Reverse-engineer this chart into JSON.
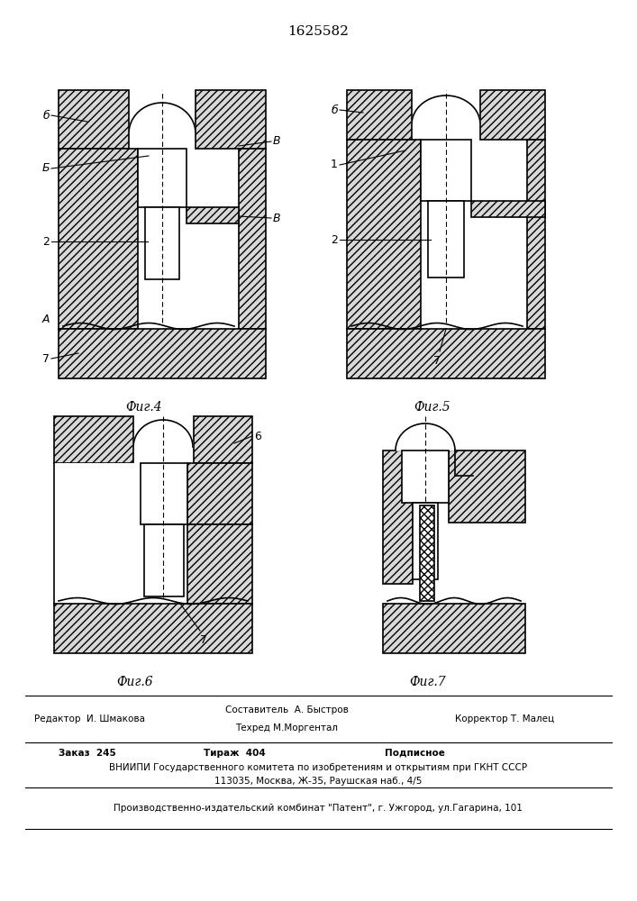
{
  "title": "1625582",
  "title_fontsize": 11,
  "fig4_label": "Фиг.4",
  "fig5_label": "Фиг.5",
  "fig6_label": "Фиг.6",
  "fig7_label": "Фиг.7",
  "footer_line1_left": "Редактор  И. Шмакова",
  "footer_line1_center_1": "Составитель  А. Быстров",
  "footer_line1_center_2": "Техред М.Моргентал",
  "footer_line1_right": "Корректор Т. Малец",
  "footer_order": "Заказ  245",
  "footer_tirazh": "Тираж  404",
  "footer_podpisnoe": "Подписное",
  "footer_vniipи": "ВНИИПИ Государственного комитета по изобретениям и открытиям при ГКНТ СССР",
  "footer_address": "113035, Москва, Ж-35, Раушская наб., 4/5",
  "footer_line3": "Производственно-издательский комбинат \"Патент\", г. Ужгород, ул.Гагарина, 101",
  "hatch_color": "#000000",
  "line_color": "#000000",
  "bg_color": "#ffffff"
}
